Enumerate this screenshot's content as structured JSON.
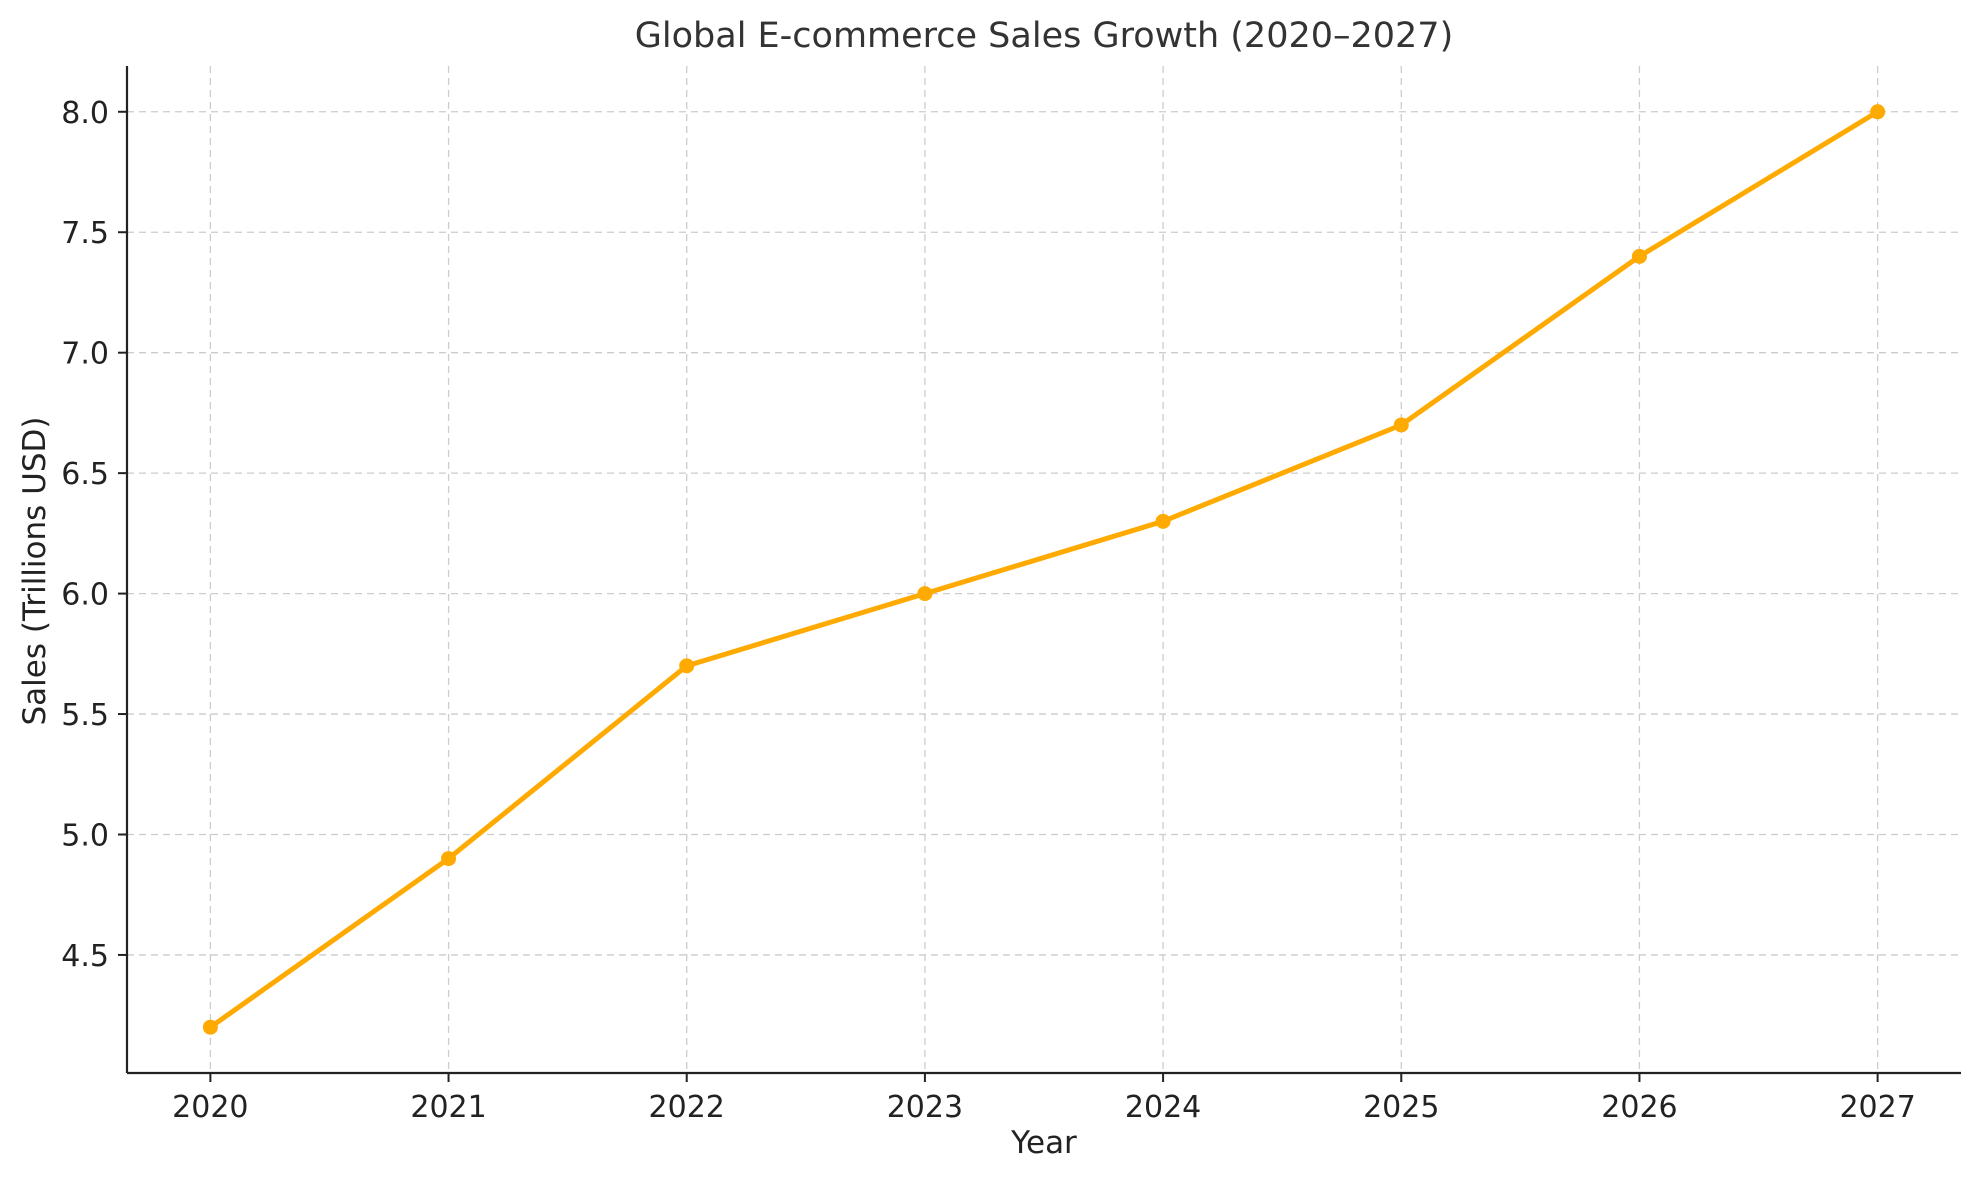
{
  "chart_data": {
    "type": "line",
    "title": "Global E-commerce Sales Growth (2020–2027)",
    "xlabel": "Year",
    "ylabel": "Sales (Trillions USD)",
    "x": [
      2020,
      2021,
      2022,
      2023,
      2024,
      2025,
      2026,
      2027
    ],
    "x_tick_labels": [
      "2020",
      "2021",
      "2022",
      "2023",
      "2024",
      "2025",
      "2026",
      "2027"
    ],
    "y_ticks": [
      4.5,
      5.0,
      5.5,
      6.0,
      6.5,
      7.0,
      7.5,
      8.0
    ],
    "y_tick_labels": [
      "4.5",
      "5.0",
      "5.5",
      "6.0",
      "6.5",
      "7.0",
      "7.5",
      "8.0"
    ],
    "xlim": [
      2019.65,
      2027.35
    ],
    "ylim": [
      4.01,
      8.19
    ],
    "grid": true,
    "series": [
      {
        "values": [
          4.2,
          4.9,
          5.7,
          6.0,
          6.3,
          6.7,
          7.4,
          8.0
        ],
        "color": "#FFAA00",
        "marker": "circle"
      }
    ]
  }
}
